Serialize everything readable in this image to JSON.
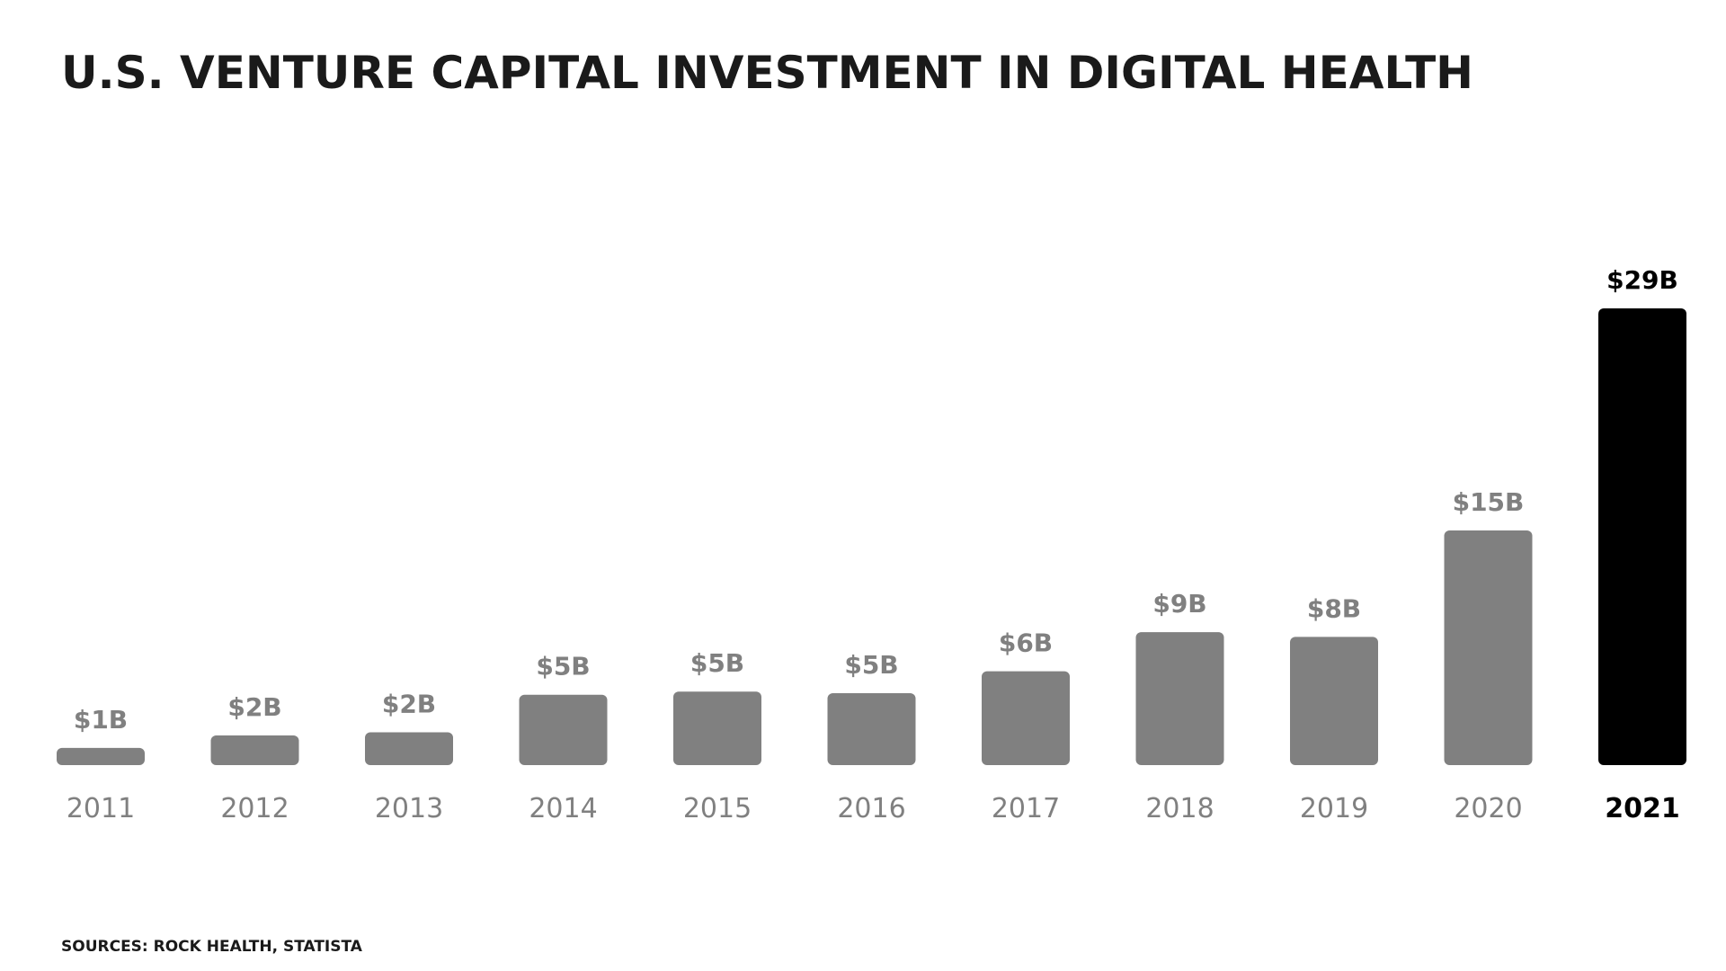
{
  "chart_data": {
    "type": "bar",
    "title": "U.S. Venture Capital Investment in Digital Health",
    "xlabel": "",
    "ylabel": "",
    "categories": [
      "2011",
      "2012",
      "2013",
      "2014",
      "2015",
      "2016",
      "2017",
      "2018",
      "2019",
      "2020",
      "2021"
    ],
    "values": [
      1.1,
      1.9,
      2.1,
      4.5,
      4.7,
      4.6,
      6.0,
      8.5,
      8.2,
      15.0,
      29.2
    ],
    "data_labels": [
      "$1B",
      "$2B",
      "$2B",
      "$5B",
      "$5B",
      "$5B",
      "$6B",
      "$9B",
      "$8B",
      "$15B",
      "$29B"
    ],
    "ylim": [
      0,
      29.2
    ],
    "highlight_category": "2021",
    "grid": false,
    "legend": "none",
    "colors": {
      "bar": "#808080",
      "highlight": "#000000",
      "label": "#808080",
      "highlight_label": "#000000"
    }
  },
  "source": "Sources: Rock Health, Statista"
}
